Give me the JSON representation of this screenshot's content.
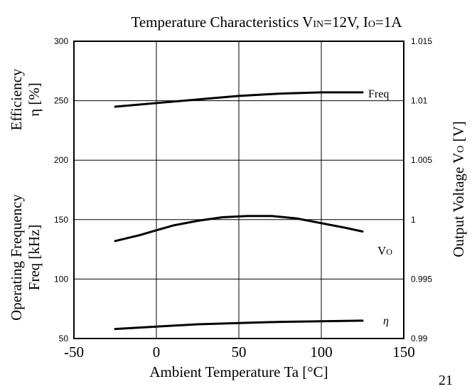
{
  "page_number": "21",
  "chart_data": {
    "type": "line",
    "title": {
      "prefix": "Temperature Characteristics V",
      "vin_sub": "IN",
      "middle": "=12V, I",
      "io_sub": "O",
      "suffix": "=1A"
    },
    "xlabel": "Ambient Temperature Ta [°C]",
    "xlim": [
      -50,
      150
    ],
    "x_ticks": [
      "-50",
      "0",
      "50",
      "100",
      "150"
    ],
    "y_left": {
      "label_line1": "Efficiency",
      "label_line2": "η [%]",
      "label_line3": "Operating Frequency",
      "label_line4": "Freq [kHz]",
      "lim": [
        50,
        300
      ],
      "ticks": [
        "300",
        "250",
        "200",
        "150",
        "100",
        "50"
      ]
    },
    "y_right": {
      "label_prefix": "Output Voltage V",
      "label_sub": "O",
      "label_suffix": " [V]",
      "lim": [
        0.99,
        1.015
      ],
      "ticks": [
        "1.015",
        "1.01",
        "1.005",
        "1",
        "0.995",
        "0.99"
      ]
    },
    "grid": true,
    "series": [
      {
        "name": "Freq",
        "axis": "left",
        "x": [
          -25,
          0,
          25,
          50,
          75,
          100,
          125
        ],
        "values": [
          245,
          248,
          251,
          254,
          256,
          257,
          257
        ]
      },
      {
        "name": "V",
        "name_sub": "O",
        "axis": "right",
        "x": [
          -25,
          -10,
          0,
          10,
          25,
          40,
          55,
          70,
          85,
          100,
          115,
          125
        ],
        "values": [
          0.9982,
          0.9987,
          0.9991,
          0.9995,
          0.9999,
          1.0002,
          1.0003,
          1.0003,
          1.0001,
          0.9997,
          0.9993,
          0.999
        ]
      },
      {
        "name": "η",
        "axis": "left",
        "x": [
          -25,
          0,
          25,
          50,
          75,
          100,
          125
        ],
        "values": [
          58,
          60,
          62,
          63,
          64,
          64.5,
          65
        ]
      }
    ]
  }
}
